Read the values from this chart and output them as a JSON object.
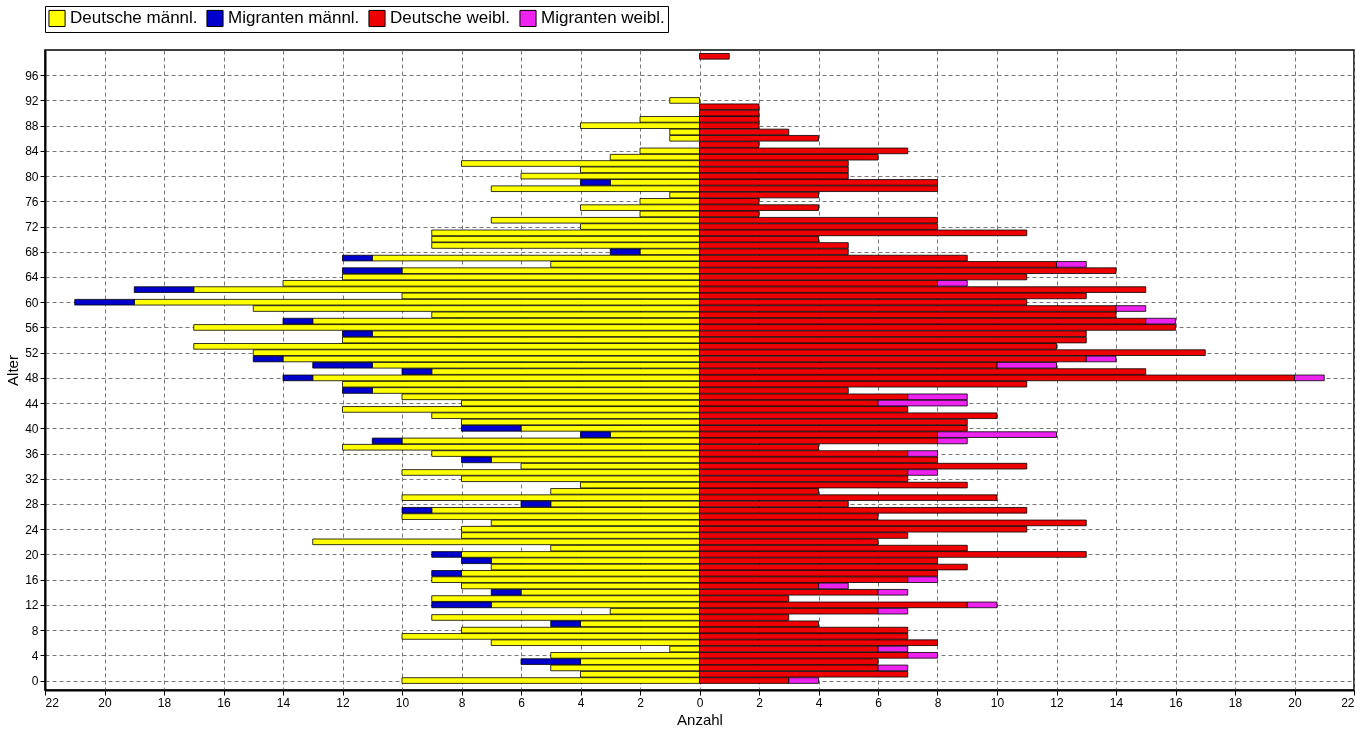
{
  "chart_data": {
    "type": "bar",
    "orientation": "horizontal",
    "stacked": true,
    "xlabel": "Anzahl",
    "ylabel": "Alter",
    "x": [
      0,
      1,
      2,
      3,
      4,
      5,
      6,
      7,
      8,
      9,
      10,
      11,
      12,
      13,
      14,
      15,
      16,
      17,
      18,
      19,
      20,
      21,
      22,
      23,
      24,
      25,
      26,
      27,
      28,
      29,
      30,
      31,
      32,
      33,
      34,
      35,
      36,
      37,
      38,
      39,
      40,
      41,
      42,
      43,
      44,
      45,
      46,
      47,
      48,
      49,
      50,
      51,
      52,
      53,
      54,
      55,
      56,
      57,
      58,
      59,
      60,
      61,
      62,
      63,
      64,
      65,
      66,
      67,
      68,
      69,
      70,
      71,
      72,
      73,
      74,
      75,
      76,
      77,
      78,
      79,
      80,
      81,
      82,
      83,
      84,
      85,
      86,
      87,
      88,
      89,
      90,
      91,
      92,
      93,
      94,
      95,
      96,
      97,
      98,
      99
    ],
    "series": [
      {
        "name": "Deutsche männl.",
        "color": "#ffff00",
        "values": [
          -10,
          -4,
          -5,
          -4,
          -5,
          -1,
          -7,
          -10,
          -8,
          -4,
          -9,
          -3,
          -7,
          -9,
          -6,
          -8,
          -9,
          -8,
          -7,
          -7,
          -8,
          -5,
          -13,
          -8,
          -8,
          -7,
          -10,
          -9,
          -5,
          -10,
          -5,
          -4,
          -8,
          -10,
          -6,
          -7,
          -9,
          -12,
          -10,
          -3,
          -6,
          -8,
          -9,
          -12,
          -8,
          -10,
          -11,
          -12,
          -13,
          -9,
          -11,
          -14,
          -15,
          -17,
          -12,
          -11,
          -17,
          -13,
          -9,
          -15,
          -19,
          -10,
          -17,
          -14,
          -12,
          -10,
          -5,
          -11,
          -2,
          -9,
          -9,
          -9,
          -4,
          -7,
          -2,
          -4,
          -2,
          -1,
          -7,
          -3,
          -6,
          -4,
          -8,
          -3,
          -2,
          0,
          -1,
          -1,
          -4,
          -2,
          0,
          0,
          -1,
          0,
          0,
          0,
          0,
          0,
          0,
          0
        ]
      },
      {
        "name": "Migranten männl.",
        "color": "#0000cc",
        "values": [
          0,
          0,
          0,
          -2,
          0,
          0,
          0,
          0,
          0,
          -1,
          0,
          0,
          -2,
          0,
          -1,
          0,
          0,
          -1,
          0,
          -1,
          -1,
          0,
          0,
          0,
          0,
          0,
          0,
          -1,
          -1,
          0,
          0,
          0,
          0,
          0,
          0,
          -1,
          0,
          0,
          -1,
          -1,
          -2,
          0,
          0,
          0,
          0,
          0,
          -1,
          0,
          -1,
          -1,
          -2,
          -1,
          0,
          0,
          0,
          -1,
          0,
          -1,
          0,
          0,
          -2,
          0,
          -2,
          0,
          0,
          -2,
          0,
          -1,
          -1,
          0,
          0,
          0,
          0,
          0,
          0,
          0,
          0,
          0,
          0,
          -1,
          0,
          0,
          0,
          0,
          0,
          0,
          0,
          0,
          0,
          0,
          0,
          0,
          0,
          0,
          0,
          0,
          0,
          0,
          0,
          0
        ]
      },
      {
        "name": "Deutsche weibl.",
        "color": "#ee0000",
        "values": [
          3,
          7,
          6,
          6,
          7,
          6,
          8,
          7,
          7,
          4,
          3,
          6,
          9,
          3,
          6,
          4,
          7,
          8,
          9,
          8,
          13,
          9,
          6,
          7,
          11,
          13,
          6,
          11,
          5,
          10,
          4,
          9,
          7,
          7,
          11,
          8,
          7,
          4,
          8,
          8,
          9,
          9,
          10,
          7,
          6,
          7,
          5,
          11,
          20,
          15,
          10,
          13,
          17,
          12,
          13,
          13,
          16,
          15,
          14,
          14,
          11,
          13,
          15,
          8,
          11,
          14,
          12,
          9,
          5,
          5,
          4,
          11,
          8,
          8,
          2,
          4,
          2,
          4,
          8,
          8,
          5,
          5,
          5,
          6,
          7,
          2,
          4,
          3,
          2,
          2,
          2,
          2,
          0,
          0,
          0,
          0,
          0,
          0,
          0,
          1
        ]
      },
      {
        "name": "Migranten weibl.",
        "color": "#ee22ee",
        "values": [
          1,
          0,
          1,
          0,
          1,
          1,
          0,
          0,
          0,
          0,
          0,
          1,
          1,
          0,
          1,
          1,
          1,
          0,
          0,
          0,
          0,
          0,
          0,
          0,
          0,
          0,
          0,
          0,
          0,
          0,
          0,
          0,
          0,
          1,
          0,
          0,
          1,
          0,
          1,
          4,
          0,
          0,
          0,
          0,
          3,
          2,
          0,
          0,
          1,
          0,
          2,
          1,
          0,
          0,
          0,
          0,
          0,
          1,
          0,
          1,
          0,
          0,
          0,
          1,
          0,
          0,
          1,
          0,
          0,
          0,
          0,
          0,
          0,
          0,
          0,
          0,
          0,
          0,
          0,
          0,
          0,
          0,
          0,
          0,
          0,
          0,
          0,
          0,
          0,
          0,
          0,
          0,
          0,
          0,
          0,
          0,
          0,
          0,
          0,
          0
        ]
      }
    ],
    "xlim": [
      -22,
      22
    ],
    "xticks": [
      {
        "value": -22,
        "label": "22"
      },
      {
        "value": -20,
        "label": "20"
      },
      {
        "value": -18,
        "label": "18"
      },
      {
        "value": -16,
        "label": "16"
      },
      {
        "value": -14,
        "label": "14"
      },
      {
        "value": -12,
        "label": "12"
      },
      {
        "value": -10,
        "label": "10"
      },
      {
        "value": -8,
        "label": "8"
      },
      {
        "value": -6,
        "label": "6"
      },
      {
        "value": -4,
        "label": "4"
      },
      {
        "value": -2,
        "label": "2"
      },
      0,
      2,
      4,
      6,
      8,
      10,
      12,
      14,
      16,
      18,
      20,
      22
    ],
    "ylim": [
      -1.5,
      100
    ],
    "yticks": [
      0,
      4,
      8,
      12,
      16,
      20,
      24,
      28,
      32,
      36,
      40,
      44,
      48,
      52,
      56,
      60,
      64,
      68,
      72,
      76,
      80,
      84,
      88,
      92,
      96
    ],
    "grid": true,
    "legend": "top"
  }
}
